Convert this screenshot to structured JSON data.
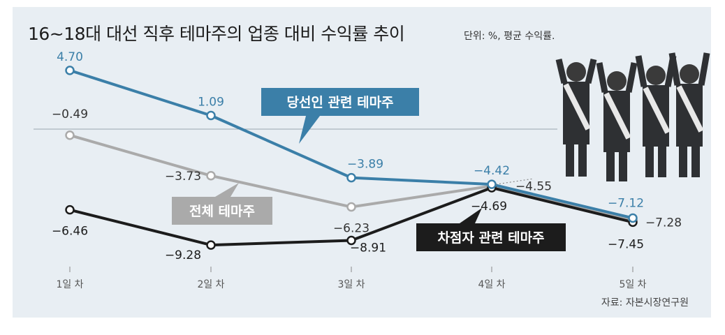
{
  "chart_data": {
    "type": "line",
    "title": "16~18대 대선 직후 테마주의 업종 대비 수익률 추이",
    "subtitle": "단위: %, 평균 수익률.",
    "categories": [
      "1일 차",
      "2일 차",
      "3일 차",
      "4일 차",
      "5일 차"
    ],
    "series": [
      {
        "name": "당선인 관련 테마주",
        "values": [
          4.7,
          1.09,
          -3.89,
          -4.42,
          -7.12
        ],
        "labels": [
          "4.70",
          "1.09",
          "−3.89",
          "−4.42",
          "−7.12"
        ],
        "color": "#3b7fa8"
      },
      {
        "name": "전체 테마주",
        "values": [
          -0.49,
          -3.73,
          -6.23,
          -4.55,
          -7.28
        ],
        "labels": [
          "−0.49",
          "−3.73",
          "−6.23",
          "−4.55",
          "−7.28"
        ],
        "color": "#aaaaaa"
      },
      {
        "name": "차점자 관련 테마주",
        "values": [
          -6.46,
          -9.28,
          -8.91,
          -4.69,
          -7.45
        ],
        "labels": [
          "−6.46",
          "−9.28",
          "−8.91",
          "−4.69",
          "−7.45"
        ],
        "color": "#1c1c1c"
      }
    ],
    "ylim": [
      -11,
      6
    ],
    "source": "자료: 자본시장연구원",
    "zero_line": true
  }
}
